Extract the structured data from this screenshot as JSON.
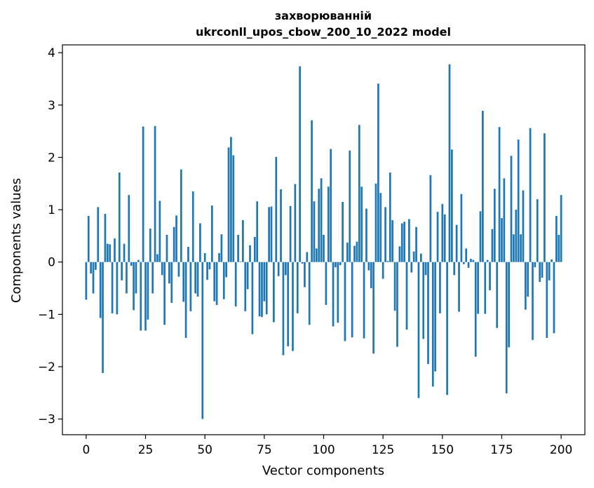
{
  "chart_data": {
    "type": "bar",
    "title_line1": "захворюванній",
    "title_line2": "ukrconll_upos_cbow_200_10_2022 model",
    "xlabel": "Vector components",
    "ylabel": "Components values",
    "xlim": [
      -10,
      210
    ],
    "ylim": [
      -3.3,
      4.15
    ],
    "xticks": [
      0,
      25,
      50,
      75,
      100,
      125,
      150,
      175,
      200
    ],
    "yticks": [
      -3,
      -2,
      -1,
      0,
      1,
      2,
      3,
      4
    ],
    "xtick_labels": [
      "0",
      "25",
      "50",
      "75",
      "100",
      "125",
      "150",
      "175",
      "200"
    ],
    "ytick_labels": [
      "−3",
      "−2",
      "−1",
      "0",
      "1",
      "2",
      "3",
      "4"
    ],
    "grid": false,
    "bar_color": "#1f77b4",
    "values": [
      -0.72,
      0.88,
      -0.22,
      -0.6,
      -0.15,
      1.05,
      -1.07,
      -2.12,
      0.92,
      0.35,
      0.34,
      -0.98,
      0.45,
      -1.0,
      1.71,
      -0.35,
      0.35,
      -0.6,
      1.28,
      -0.07,
      -0.92,
      -0.6,
      0.04,
      -1.31,
      2.59,
      -1.31,
      -1.1,
      0.64,
      -0.6,
      2.6,
      0.15,
      1.17,
      -0.25,
      -1.2,
      0.52,
      -0.41,
      -0.78,
      0.67,
      0.89,
      -0.28,
      1.77,
      -0.76,
      -1.45,
      0.29,
      -0.94,
      1.35,
      -0.6,
      -0.66,
      0.74,
      -3.0,
      0.17,
      -0.34,
      -0.14,
      1.08,
      -0.75,
      -0.82,
      0.17,
      0.53,
      -0.71,
      -0.29,
      2.19,
      2.39,
      2.04,
      -0.85,
      0.52,
      0.01,
      0.8,
      -0.94,
      -0.52,
      0.32,
      -1.38,
      0.48,
      1.16,
      -1.04,
      -1.05,
      -0.75,
      -1.0,
      1.05,
      1.06,
      -1.15,
      2.01,
      -0.27,
      1.39,
      -1.78,
      -0.25,
      -1.61,
      1.07,
      -1.7,
      1.49,
      -0.98,
      3.74,
      -0.03,
      -0.48,
      0.19,
      -1.2,
      2.71,
      1.16,
      0.26,
      1.4,
      1.6,
      0.52,
      -0.82,
      1.44,
      2.16,
      -1.23,
      -0.1,
      -1.16,
      -0.06,
      1.15,
      -1.51,
      0.37,
      2.13,
      -1.44,
      0.31,
      0.39,
      2.62,
      1.44,
      -1.46,
      1.02,
      -0.16,
      -0.5,
      -1.75,
      1.5,
      3.41,
      1.32,
      -0.32,
      1.05,
      0.02,
      1.71,
      0.8,
      -0.93,
      -1.62,
      0.3,
      0.74,
      0.77,
      -1.29,
      0.82,
      -0.2,
      0.2,
      0.67,
      -2.6,
      0.16,
      -1.47,
      -0.25,
      -1.95,
      1.66,
      -2.38,
      -2.09,
      0.96,
      -0.98,
      1.11,
      0.91,
      -2.54,
      3.78,
      2.15,
      -0.25,
      0.71,
      -0.95,
      1.3,
      -0.04,
      0.26,
      -0.11,
      0.06,
      0.04,
      -1.81,
      -0.99,
      0.97,
      2.89,
      -0.99,
      0.04,
      -0.54,
      0.63,
      1.4,
      -1.26,
      2.58,
      0.84,
      1.6,
      -2.51,
      -1.63,
      2.03,
      0.53,
      1.0,
      2.34,
      0.53,
      1.37,
      -0.91,
      -0.66,
      2.56,
      -1.49,
      -0.1,
      1.2,
      -0.38,
      -0.3,
      2.46,
      -1.45,
      -0.35,
      0.05,
      -1.36,
      0.88,
      0.52,
      1.28
    ]
  }
}
